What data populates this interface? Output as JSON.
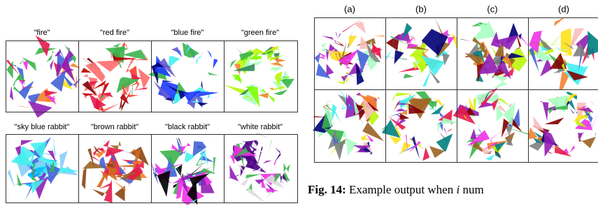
{
  "left": {
    "rows": [
      {
        "labels": [
          "\"fire\"",
          "\"red fire\"",
          "\"blue fire\"",
          "\"green fire\""
        ]
      },
      {
        "labels": [
          "\"sky blue rabbit\"",
          "\"brown rabbit\"",
          "\"black rabbit\"",
          "\"white rabbit\""
        ]
      }
    ]
  },
  "right": {
    "columns": [
      "(a)",
      "(b)",
      "(c)",
      "(d)"
    ]
  },
  "caption": {
    "label": "Fig. 14:",
    "text": "Example output when",
    "var": "i",
    "tail": "num"
  }
}
